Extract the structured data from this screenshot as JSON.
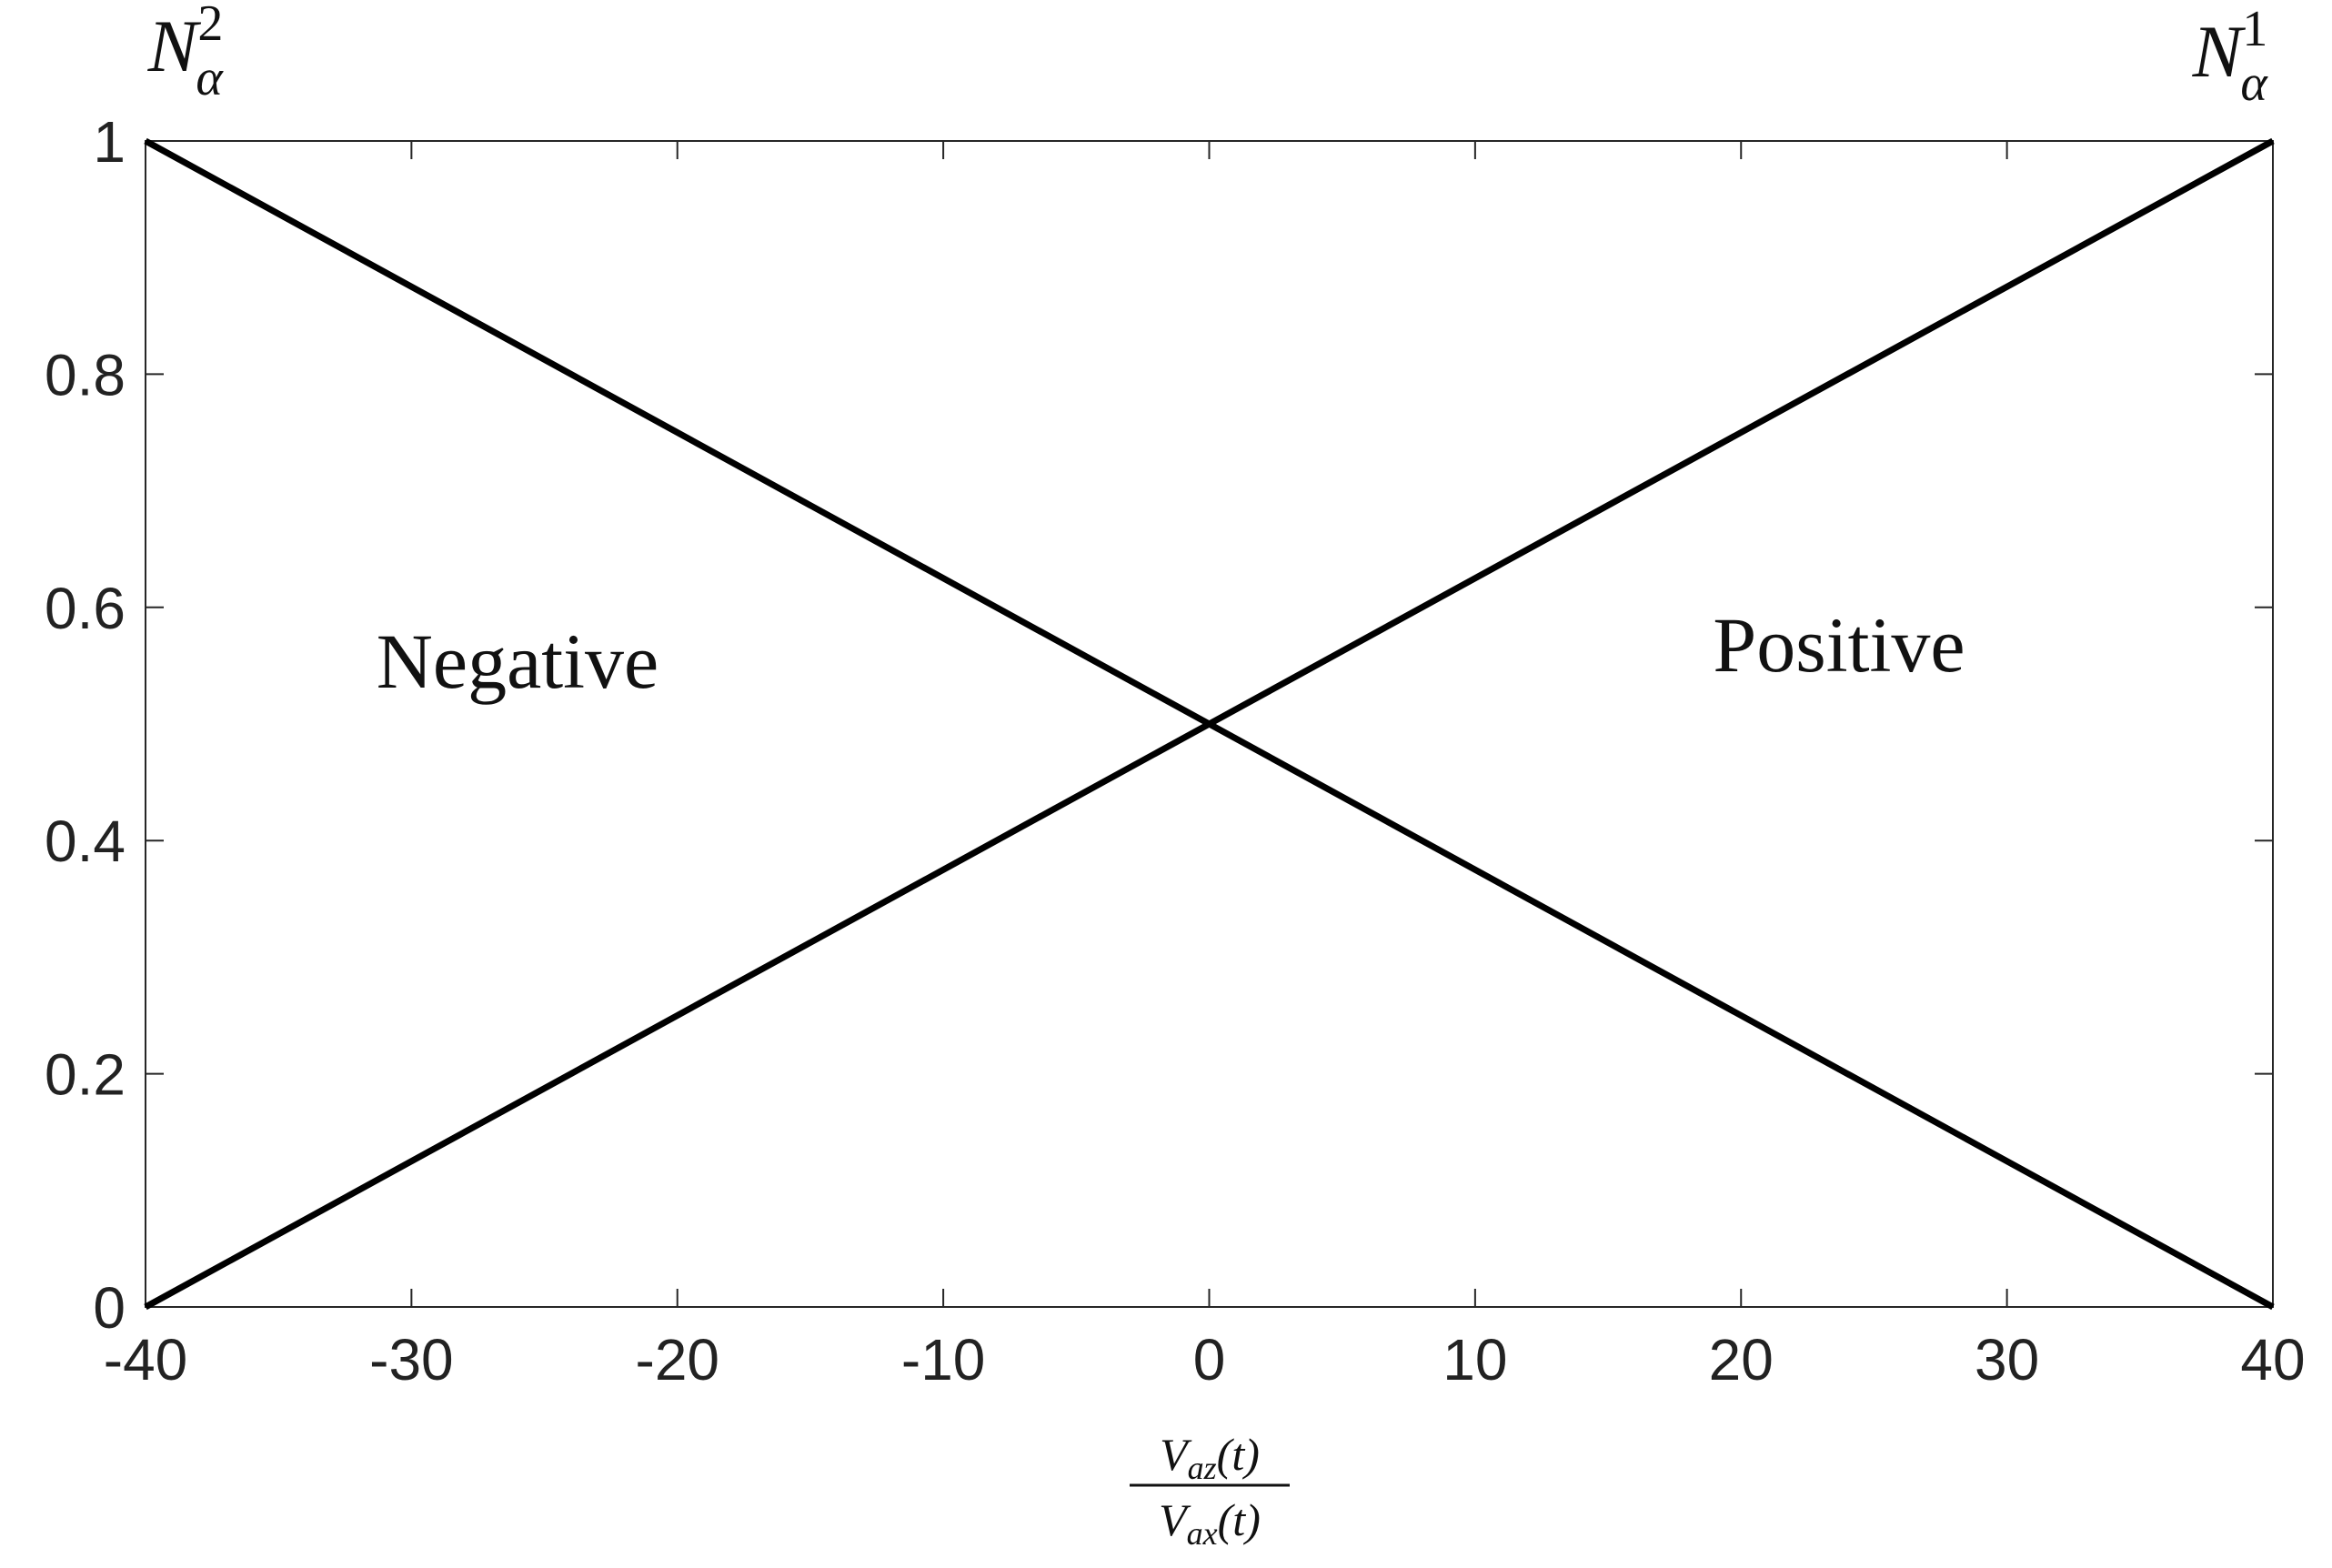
{
  "chart_data": {
    "type": "line",
    "x": [
      -40,
      40
    ],
    "series": [
      {
        "name": {
          "base": "N",
          "sub": "α",
          "sup": "2"
        },
        "color": "#000000",
        "values": [
          1,
          0
        ]
      },
      {
        "name": {
          "base": "N",
          "sub": "α",
          "sup": "1"
        },
        "color": "#000000",
        "values": [
          0,
          1
        ]
      }
    ],
    "xlim": [
      -40,
      40
    ],
    "xticks": [
      -40,
      -30,
      -20,
      -10,
      0,
      10,
      20,
      30,
      40
    ],
    "ylim": [
      0,
      1
    ],
    "yticks": [
      0,
      0.2,
      0.4,
      0.6,
      0.8,
      1
    ],
    "xlabel": {
      "numerator": {
        "base": "V",
        "sub": "az",
        "rest": "(t)"
      },
      "denominator": {
        "base": "V",
        "sub": "ax",
        "rest": "(t)"
      }
    },
    "annotations": [
      "Negative",
      "Positive"
    ],
    "grid": false
  }
}
